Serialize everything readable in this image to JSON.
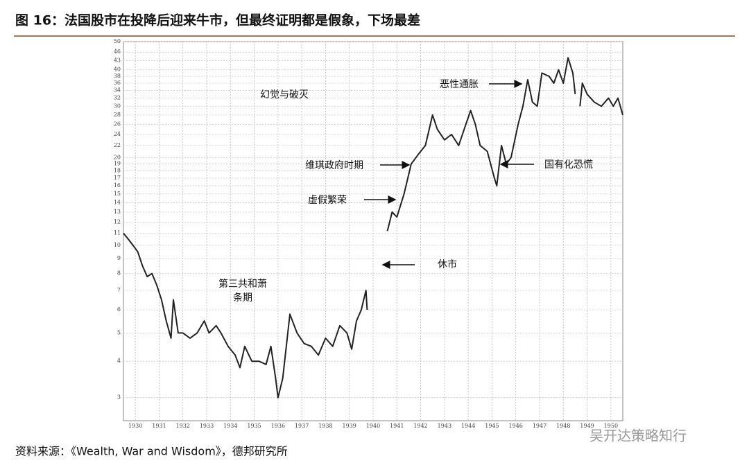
{
  "chart_data": {
    "type": "line",
    "title": "图 16：法国股市在投降后迎来牛市，但最终证明都是假象，下场最差",
    "source": "资料来源：《Wealth, War and Wisdom》，德邦研究所",
    "watermark": "吴开达策略知行",
    "log_scale": true,
    "grid": true,
    "color": "#222222",
    "xlim": [
      1929.5,
      1950.5
    ],
    "xticks": [
      1930,
      1931,
      1932,
      1933,
      1934,
      1935,
      1936,
      1937,
      1938,
      1939,
      1940,
      1941,
      1942,
      1943,
      1944,
      1945,
      1946,
      1947,
      1948,
      1949,
      1950
    ],
    "ylim": [
      2.5,
      50
    ],
    "yticks": [
      3,
      4,
      5,
      6,
      7,
      8,
      9,
      10,
      11,
      12,
      13,
      14,
      15,
      16,
      17,
      18,
      19,
      20,
      22,
      24,
      26,
      28,
      30,
      32,
      34,
      36,
      38,
      40,
      43,
      46,
      50
    ],
    "x": [
      1929.5,
      1929.7,
      1929.9,
      1930.1,
      1930.3,
      1930.5,
      1930.7,
      1930.9,
      1931.1,
      1931.3,
      1931.5,
      1931.6,
      1931.8,
      1932.0,
      1932.3,
      1932.6,
      1932.9,
      1933.1,
      1933.4,
      1933.6,
      1933.9,
      1934.2,
      1934.4,
      1934.6,
      1934.9,
      1935.2,
      1935.5,
      1935.7,
      1935.9,
      1936.0,
      1936.2,
      1936.5,
      1936.8,
      1937.1,
      1937.4,
      1937.7,
      1938.0,
      1938.3,
      1938.6,
      1938.9,
      1939.1,
      1939.3,
      1939.5,
      1939.7,
      1939.75,
      1940.2,
      1940.6,
      1940.8,
      1941.0,
      1941.3,
      1941.6,
      1941.9,
      1942.2,
      1942.5,
      1942.7,
      1943.0,
      1943.3,
      1943.6,
      1943.9,
      1944.1,
      1944.3,
      1944.5,
      1944.8,
      1945.1,
      1945.2,
      1945.4,
      1945.6,
      1945.8,
      1946.1,
      1946.3,
      1946.5,
      1946.7,
      1946.9,
      1947.1,
      1947.4,
      1947.6,
      1947.8,
      1948.0,
      1948.2,
      1948.4,
      1948.5,
      1948.6,
      1948.7,
      1948.8,
      1949.0,
      1949.3,
      1949.6,
      1949.9,
      1950.1,
      1950.3,
      1950.5
    ],
    "values": [
      11,
      10.5,
      10,
      9.5,
      8.5,
      7.8,
      8,
      7.3,
      6.5,
      5.5,
      4.8,
      6.5,
      5,
      5,
      4.8,
      5,
      5.5,
      5,
      5.3,
      5,
      4.5,
      4.2,
      3.8,
      4.5,
      4,
      4,
      3.9,
      4.5,
      3.5,
      3,
      3.5,
      5.8,
      5,
      4.6,
      4.5,
      4.2,
      4.8,
      4.5,
      5.3,
      5,
      4.4,
      5.5,
      6,
      7,
      6,
      null,
      11.2,
      13,
      12.5,
      15,
      19,
      20.5,
      22,
      28,
      25,
      23,
      24,
      22,
      26,
      29,
      26,
      22,
      21,
      17,
      16,
      22,
      19,
      20,
      26,
      30,
      37,
      31,
      30,
      39,
      38,
      36,
      40,
      36,
      44,
      39,
      33,
      null,
      30,
      36,
      33,
      31,
      30,
      32,
      30,
      32,
      28
    ],
    "annotations": [
      {
        "lines": [
          "幻觉与破灭"
        ]
      },
      {
        "lines": [
          "恶性通胀"
        ]
      },
      {
        "lines": [
          "维琪政府时期"
        ]
      },
      {
        "lines": [
          "国有化恐慌"
        ]
      },
      {
        "lines": [
          "虚假繁荣"
        ]
      },
      {
        "lines": [
          "休市"
        ]
      },
      {
        "lines": [
          "第三共和萧",
          "条期"
        ]
      }
    ]
  }
}
